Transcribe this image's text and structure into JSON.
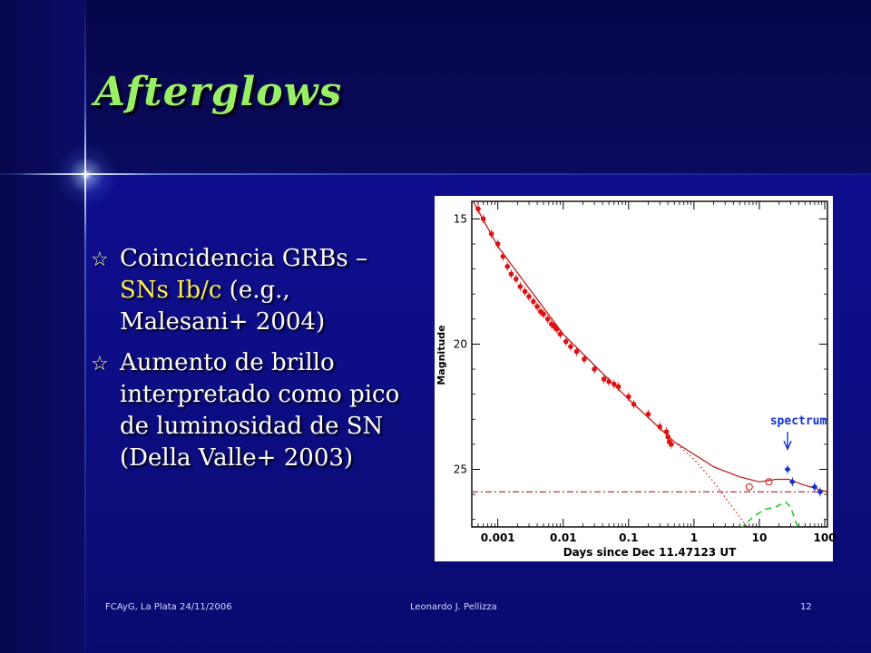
{
  "slide": {
    "title": "Afterglows",
    "bullets": [
      {
        "parts": [
          {
            "text": "Coincidencia GRBs – ",
            "hl": false
          },
          {
            "text": "SNs Ib/c",
            "hl": true
          },
          {
            "text": " (e.g., Malesani+ 2004)",
            "hl": false
          }
        ]
      },
      {
        "parts": [
          {
            "text": "Aumento de brillo interpretado como pico de luminosidad de SN (Della Valle+ 2003)",
            "hl": false
          }
        ]
      }
    ],
    "footer": {
      "left": "FCAyG, La Plata 24/11/2006",
      "center": "Leonardo J. Pellizza",
      "right": "12"
    }
  },
  "chart_data": {
    "type": "scatter",
    "xlabel": "Days since Dec 11.47123 UT",
    "ylabel": "Magnitude",
    "x_scale": "log",
    "xlim": [
      0.0004,
      110
    ],
    "ylim": [
      27.3,
      14.3
    ],
    "x_ticks": [
      0.001,
      0.01,
      0.1,
      1,
      10,
      100
    ],
    "x_tick_labels": [
      "0.001",
      "0.01",
      "0.1",
      "1",
      "10",
      "100"
    ],
    "y_ticks": [
      15,
      20,
      25
    ],
    "y_tick_labels": [
      "15",
      "20",
      "25"
    ],
    "annotation": {
      "text": "spectrum",
      "x": 27,
      "y": 24.3
    },
    "series": [
      {
        "color": "#dd1111",
        "marker": "filled-circle",
        "points": [
          [
            0.0005,
            14.6
          ],
          [
            0.0006,
            15.0
          ],
          [
            0.0008,
            15.6
          ],
          [
            0.001,
            16.0
          ],
          [
            0.0012,
            16.5
          ],
          [
            0.0014,
            16.9
          ],
          [
            0.0016,
            17.2
          ],
          [
            0.0019,
            17.4
          ],
          [
            0.0022,
            17.7
          ],
          [
            0.0026,
            17.9
          ],
          [
            0.003,
            18.1
          ],
          [
            0.0035,
            18.3
          ],
          [
            0.004,
            18.5
          ],
          [
            0.0045,
            18.7
          ],
          [
            0.005,
            18.8
          ],
          [
            0.0058,
            19.0
          ],
          [
            0.0066,
            19.2
          ],
          [
            0.0073,
            19.3
          ],
          [
            0.008,
            19.4
          ],
          [
            0.009,
            19.6
          ],
          [
            0.011,
            19.9
          ],
          [
            0.013,
            20.1
          ],
          [
            0.016,
            20.3
          ],
          [
            0.021,
            20.6
          ],
          [
            0.03,
            21.0
          ],
          [
            0.042,
            21.4
          ],
          [
            0.05,
            21.5
          ],
          [
            0.06,
            21.6
          ],
          [
            0.07,
            21.7
          ],
          [
            0.1,
            22.1
          ],
          [
            0.12,
            22.4
          ],
          [
            0.2,
            22.8
          ],
          [
            0.3,
            23.3
          ],
          [
            0.38,
            23.5
          ],
          [
            0.4,
            23.7
          ],
          [
            0.42,
            23.9
          ],
          [
            0.45,
            24.0
          ]
        ]
      },
      {
        "color": "#dd1111",
        "marker": "open-circle",
        "points": [
          [
            7,
            25.7
          ],
          [
            14,
            25.5
          ]
        ]
      },
      {
        "color": "#1133cc",
        "marker": "filled-diamond",
        "points": [
          [
            27,
            25.0
          ],
          [
            32,
            25.5
          ],
          [
            70,
            25.7
          ],
          [
            85,
            25.9
          ]
        ]
      }
    ],
    "curves": [
      {
        "style": "solid",
        "color": "#bb1111",
        "points": [
          [
            0.0004,
            14.2
          ],
          [
            0.001,
            16.1
          ],
          [
            0.01,
            19.6
          ],
          [
            0.1,
            22.2
          ],
          [
            0.5,
            23.9
          ],
          [
            2,
            24.9
          ],
          [
            5,
            25.3
          ],
          [
            10,
            25.5
          ],
          [
            18,
            25.4
          ],
          [
            28,
            25.4
          ],
          [
            45,
            25.6
          ],
          [
            80,
            25.8
          ],
          [
            110,
            25.9
          ]
        ]
      },
      {
        "style": "dotted",
        "color": "#dd1111",
        "points": [
          [
            0.0004,
            14.2
          ],
          [
            0.001,
            16.1
          ],
          [
            0.01,
            19.6
          ],
          [
            0.1,
            22.2
          ],
          [
            0.5,
            23.9
          ],
          [
            1,
            24.6
          ],
          [
            2,
            25.5
          ],
          [
            5,
            26.9
          ],
          [
            8,
            27.6
          ]
        ]
      },
      {
        "style": "dash-dot",
        "color": "#aa2222",
        "points": [
          [
            0.0004,
            25.9
          ],
          [
            110,
            25.9
          ]
        ]
      },
      {
        "style": "dashed",
        "color": "#22cc22",
        "points": [
          [
            5,
            27.4
          ],
          [
            8,
            26.9
          ],
          [
            12,
            26.6
          ],
          [
            18,
            26.5
          ],
          [
            25,
            26.3
          ],
          [
            30,
            26.5
          ],
          [
            35,
            27.0
          ],
          [
            40,
            27.4
          ]
        ]
      }
    ]
  }
}
